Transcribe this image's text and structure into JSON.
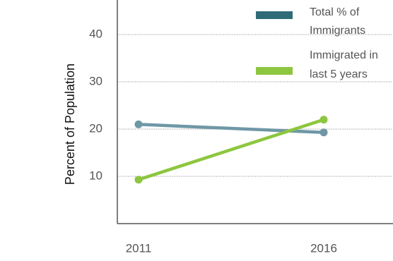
{
  "chart_data": {
    "type": "line",
    "categories": [
      "2011",
      "2016"
    ],
    "series": [
      {
        "name_lines": [
          "Total % of",
          "Immigrants"
        ],
        "values": [
          21,
          19.3
        ],
        "color": "#6f97a6"
      },
      {
        "name_lines": [
          "Immigrated in",
          "last 5 years"
        ],
        "values": [
          9.3,
          22
        ],
        "color": "#8dc63f"
      }
    ],
    "legend_swatch_colors": [
      "#2f6b78",
      "#8dc63f"
    ],
    "ylabel": "Percent of Population",
    "yticks": [
      "10",
      "20",
      "30",
      "40"
    ],
    "ylim": [
      0,
      47
    ],
    "grid": "horizontal dotted",
    "legend_position": "top-right"
  }
}
